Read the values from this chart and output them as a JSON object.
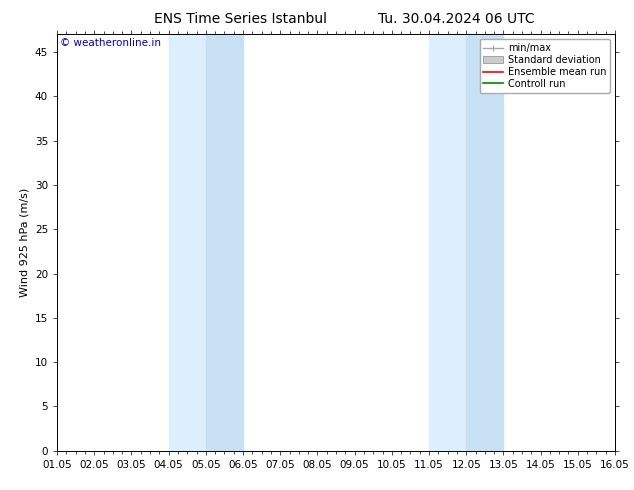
{
  "title_left": "ENS Time Series Istanbul",
  "title_right": "Tu. 30.04.2024 06 UTC",
  "ylabel": "Wind 925 hPa (m/s)",
  "yticks": [
    0,
    5,
    10,
    15,
    20,
    25,
    30,
    35,
    40,
    45
  ],
  "ylim": [
    0,
    47
  ],
  "xlim": [
    0,
    360
  ],
  "xtick_labels": [
    "01.05",
    "02.05",
    "03.05",
    "04.05",
    "05.05",
    "06.05",
    "07.05",
    "08.05",
    "09.05",
    "10.05",
    "11.05",
    "12.05",
    "13.05",
    "14.05",
    "15.05",
    "16.05"
  ],
  "xtick_positions": [
    0,
    24,
    48,
    72,
    96,
    120,
    144,
    168,
    192,
    216,
    240,
    264,
    288,
    312,
    336,
    360
  ],
  "shaded_bands": [
    {
      "xstart": 72,
      "xend": 96
    },
    {
      "xstart": 96,
      "xend": 120
    },
    {
      "xstart": 240,
      "xend": 264
    },
    {
      "xstart": 264,
      "xend": 288
    }
  ],
  "shade_color": "#ddeeff",
  "shade_color2": "#c8e0f4",
  "background_color": "#ffffff",
  "plot_bg_color": "#ffffff",
  "copyright_text": "© weatheronline.in",
  "copyright_color": "#0000cc",
  "legend_items": [
    {
      "label": "min/max",
      "color": "#aaaaaa",
      "type": "minmax"
    },
    {
      "label": "Standard deviation",
      "color": "#cccccc",
      "type": "stddev"
    },
    {
      "label": "Ensemble mean run",
      "color": "#ff0000",
      "type": "line"
    },
    {
      "label": "Controll run",
      "color": "#008800",
      "type": "line"
    }
  ],
  "tick_color": "#000000",
  "axis_color": "#000000",
  "title_fontsize": 10,
  "label_fontsize": 8,
  "tick_fontsize": 7.5,
  "copyright_fontsize": 7.5,
  "legend_fontsize": 7
}
